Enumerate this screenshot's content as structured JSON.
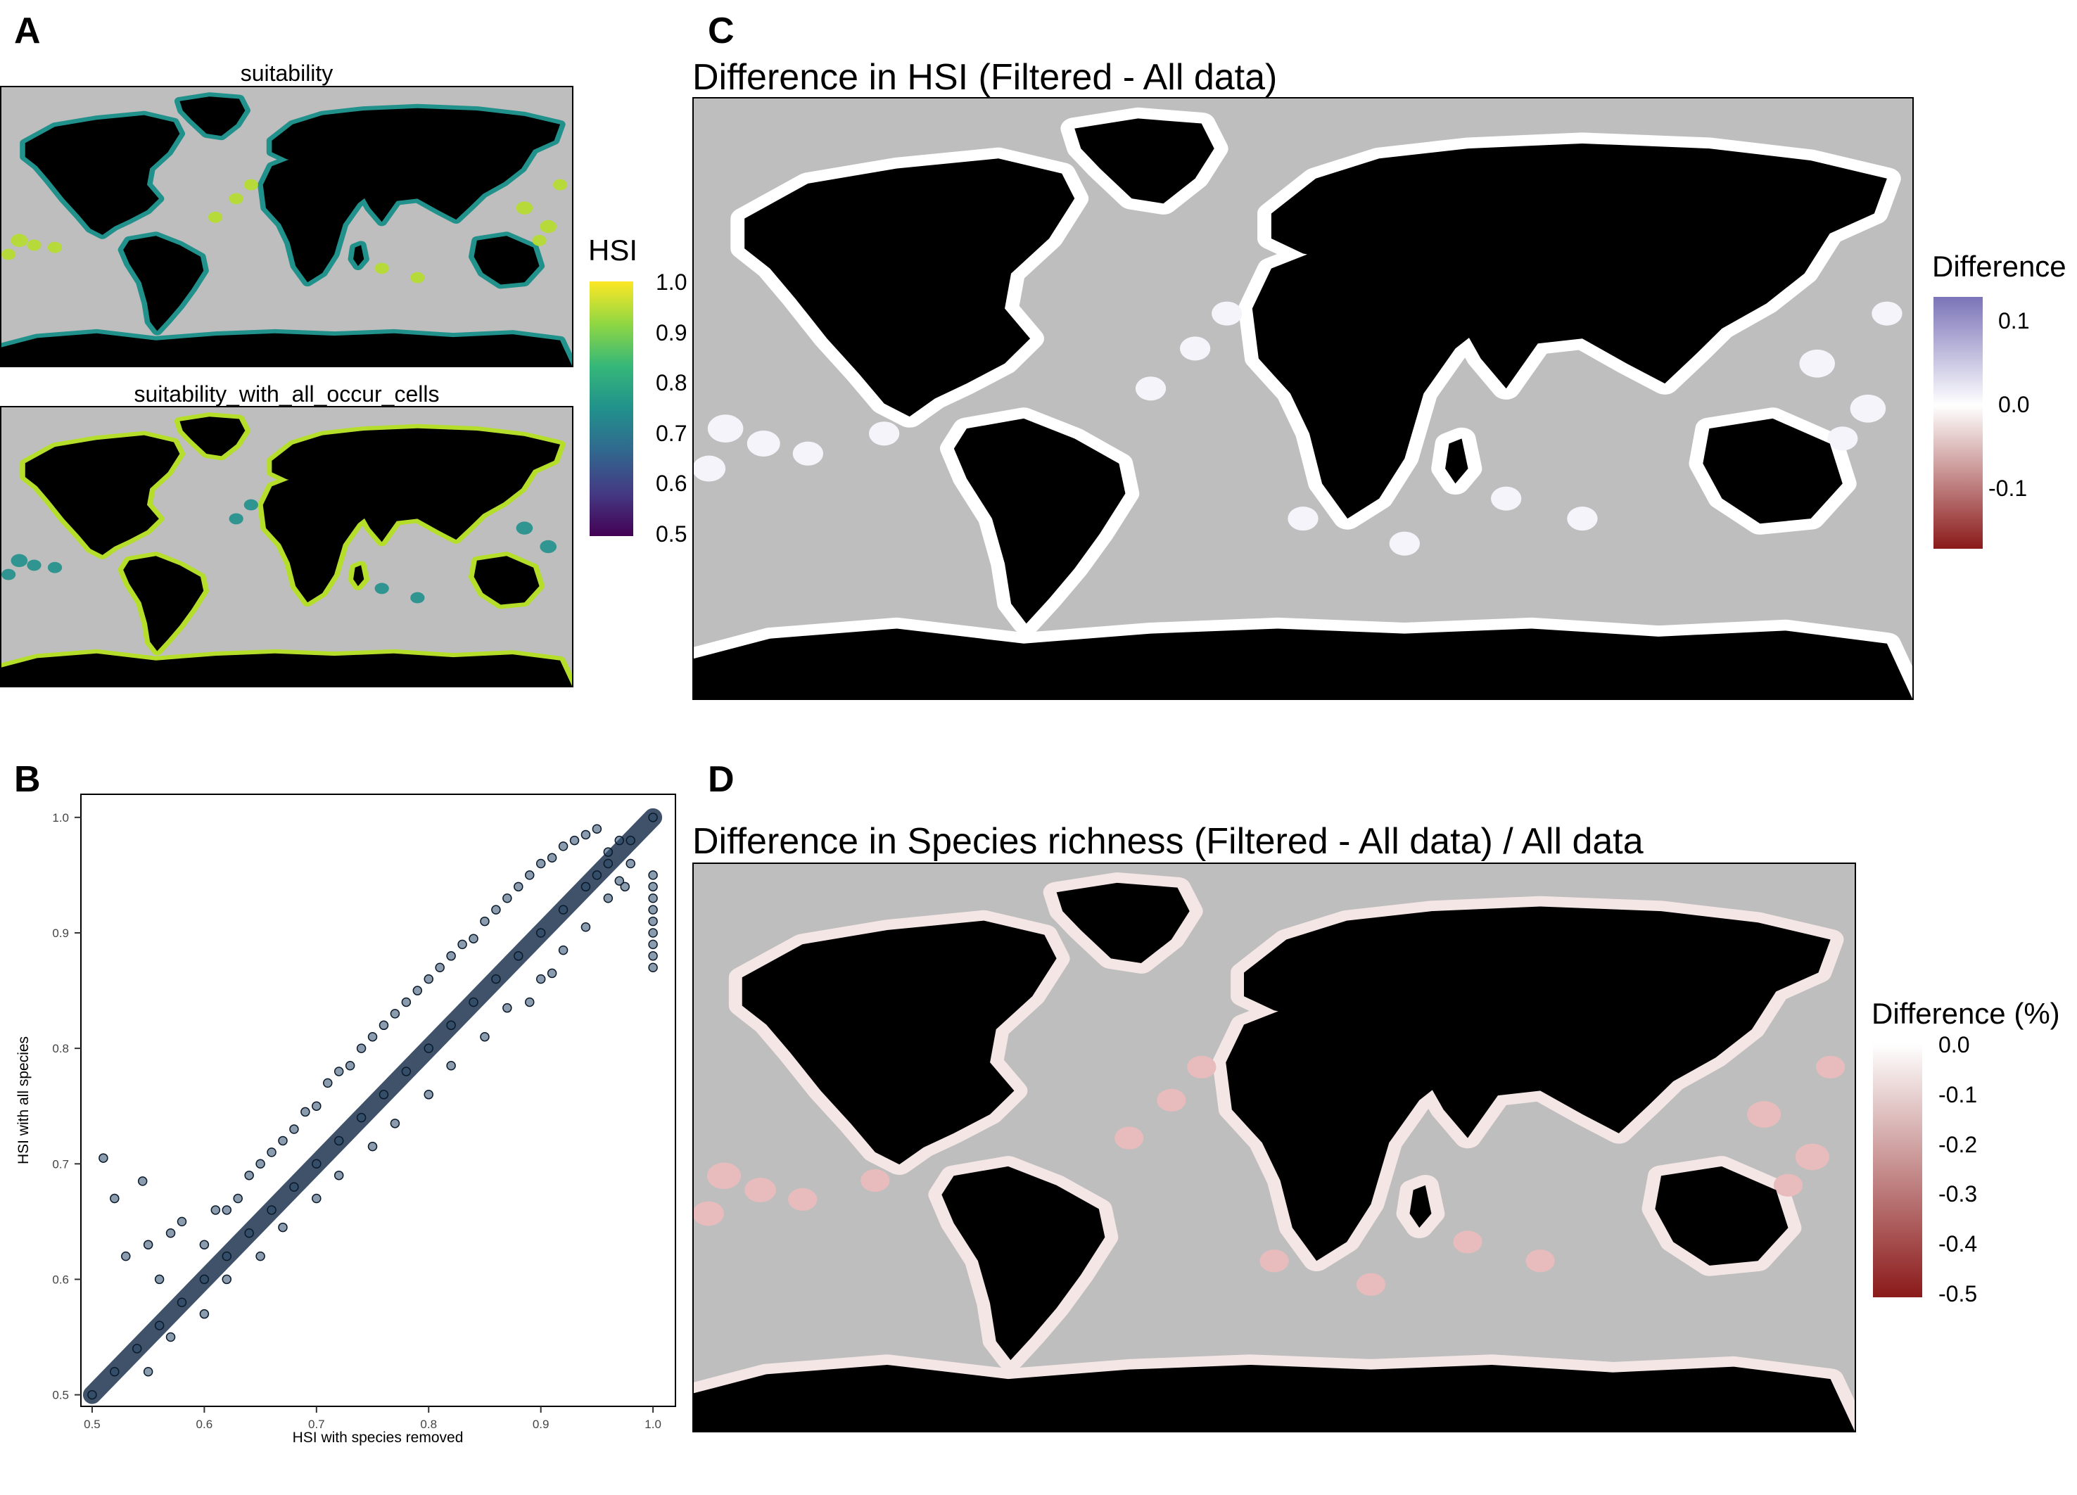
{
  "panels": {
    "a": {
      "label": "A",
      "top_subtitle": "suitability",
      "bottom_subtitle": "suitability_with_all_occur_cells"
    },
    "b": {
      "label": "B"
    },
    "c": {
      "label": "C",
      "title": "Difference in HSI (Filtered - All data)"
    },
    "d": {
      "label": "D",
      "title": "Difference in Species richness (Filtered - All data) / All data"
    }
  },
  "legends": {
    "hsi": {
      "title": "HSI",
      "ticks": [
        "1.0",
        "0.9",
        "0.8",
        "0.7",
        "0.6",
        "0.5"
      ],
      "colors": [
        "#fde725",
        "#90d743",
        "#35b779",
        "#21918c",
        "#31688e",
        "#443983",
        "#440154"
      ]
    },
    "diff": {
      "title": "Difference",
      "ticks": [
        "0.1",
        "0.0",
        "-0.1"
      ],
      "colors": [
        "#7b74b8",
        "#ffffff",
        "#8b1a1a"
      ]
    },
    "diffpct": {
      "title": "Difference (%)",
      "ticks": [
        "0.0",
        "-0.1",
        "-0.2",
        "-0.3",
        "-0.4",
        "-0.5"
      ],
      "colors": [
        "#ffffff",
        "#8b1a1a"
      ]
    }
  },
  "map_colors": {
    "ocean": "#bebebe",
    "land": "#000000"
  },
  "chart_data": [
    {
      "panel": "A",
      "type": "heatmap",
      "subplots": [
        "suitability",
        "suitability_with_all_occur_cells"
      ],
      "legend_title": "HSI",
      "value_range": [
        0.5,
        1.0
      ],
      "colormap": "viridis"
    },
    {
      "panel": "B",
      "type": "scatter",
      "xlabel": "HSI with species removed",
      "ylabel": "HSI with all species",
      "xlim": [
        0.49,
        1.02
      ],
      "ylim": [
        0.49,
        1.02
      ],
      "x_ticks": [
        "0.5",
        "0.6",
        "0.7",
        "0.8",
        "0.9",
        "1.0"
      ],
      "y_ticks": [
        "0.5",
        "0.6",
        "0.7",
        "0.8",
        "0.9",
        "1.0"
      ],
      "point_color": "#2c4a6b",
      "grid": false,
      "points": [
        [
          0.5,
          0.5
        ],
        [
          0.52,
          0.52
        ],
        [
          0.54,
          0.54
        ],
        [
          0.56,
          0.56
        ],
        [
          0.58,
          0.58
        ],
        [
          0.6,
          0.6
        ],
        [
          0.62,
          0.62
        ],
        [
          0.64,
          0.64
        ],
        [
          0.66,
          0.66
        ],
        [
          0.68,
          0.68
        ],
        [
          0.7,
          0.7
        ],
        [
          0.72,
          0.72
        ],
        [
          0.74,
          0.74
        ],
        [
          0.76,
          0.76
        ],
        [
          0.78,
          0.78
        ],
        [
          0.8,
          0.8
        ],
        [
          0.82,
          0.82
        ],
        [
          0.84,
          0.84
        ],
        [
          0.86,
          0.86
        ],
        [
          0.88,
          0.88
        ],
        [
          0.9,
          0.9
        ],
        [
          0.92,
          0.92
        ],
        [
          0.94,
          0.94
        ],
        [
          0.96,
          0.96
        ],
        [
          0.98,
          0.98
        ],
        [
          1.0,
          1.0
        ],
        [
          0.51,
          0.705
        ],
        [
          0.52,
          0.67
        ],
        [
          0.545,
          0.685
        ],
        [
          0.53,
          0.62
        ],
        [
          0.55,
          0.63
        ],
        [
          0.56,
          0.6
        ],
        [
          0.57,
          0.64
        ],
        [
          0.58,
          0.65
        ],
        [
          0.6,
          0.63
        ],
        [
          0.61,
          0.66
        ],
        [
          0.62,
          0.66
        ],
        [
          0.63,
          0.67
        ],
        [
          0.64,
          0.69
        ],
        [
          0.65,
          0.7
        ],
        [
          0.66,
          0.71
        ],
        [
          0.67,
          0.72
        ],
        [
          0.68,
          0.73
        ],
        [
          0.69,
          0.745
        ],
        [
          0.7,
          0.75
        ],
        [
          0.71,
          0.77
        ],
        [
          0.72,
          0.78
        ],
        [
          0.73,
          0.785
        ],
        [
          0.74,
          0.8
        ],
        [
          0.75,
          0.81
        ],
        [
          0.76,
          0.82
        ],
        [
          0.77,
          0.83
        ],
        [
          0.78,
          0.84
        ],
        [
          0.79,
          0.85
        ],
        [
          0.8,
          0.86
        ],
        [
          0.81,
          0.87
        ],
        [
          0.82,
          0.88
        ],
        [
          0.83,
          0.89
        ],
        [
          0.84,
          0.895
        ],
        [
          0.85,
          0.91
        ],
        [
          0.86,
          0.92
        ],
        [
          0.87,
          0.93
        ],
        [
          0.88,
          0.94
        ],
        [
          0.89,
          0.95
        ],
        [
          0.9,
          0.96
        ],
        [
          0.91,
          0.965
        ],
        [
          0.92,
          0.975
        ],
        [
          0.93,
          0.98
        ],
        [
          0.94,
          0.985
        ],
        [
          0.95,
          0.99
        ],
        [
          0.55,
          0.52
        ],
        [
          0.57,
          0.55
        ],
        [
          0.6,
          0.57
        ],
        [
          0.62,
          0.6
        ],
        [
          0.65,
          0.62
        ],
        [
          0.67,
          0.645
        ],
        [
          0.7,
          0.67
        ],
        [
          0.72,
          0.69
        ],
        [
          0.75,
          0.715
        ],
        [
          0.77,
          0.735
        ],
        [
          0.8,
          0.76
        ],
        [
          0.82,
          0.785
        ],
        [
          0.85,
          0.81
        ],
        [
          0.87,
          0.835
        ],
        [
          0.9,
          0.86
        ],
        [
          0.91,
          0.865
        ],
        [
          0.89,
          0.84
        ],
        [
          0.92,
          0.885
        ],
        [
          0.94,
          0.905
        ],
        [
          0.96,
          0.93
        ],
        [
          0.97,
          0.945
        ],
        [
          0.98,
          0.96
        ],
        [
          0.95,
          0.95
        ],
        [
          0.96,
          0.97
        ],
        [
          0.97,
          0.98
        ],
        [
          0.975,
          0.94
        ],
        [
          1.0,
          0.87
        ],
        [
          1.0,
          0.88
        ],
        [
          1.0,
          0.89
        ],
        [
          1.0,
          0.9
        ],
        [
          1.0,
          0.91
        ],
        [
          1.0,
          0.92
        ],
        [
          1.0,
          0.93
        ],
        [
          1.0,
          0.94
        ],
        [
          1.0,
          0.95
        ]
      ]
    },
    {
      "panel": "C",
      "type": "heatmap",
      "title": "Difference in HSI (Filtered - All data)",
      "legend_title": "Difference",
      "value_range": [
        -0.17,
        0.13
      ],
      "legend_ticks": [
        "0.1",
        "0.0",
        "-0.1"
      ]
    },
    {
      "panel": "D",
      "type": "heatmap",
      "title": "Difference in Species richness (Filtered - All data) / All data",
      "legend_title": "Difference (%)",
      "value_range": [
        -0.5,
        0.0
      ],
      "legend_ticks": [
        "0.0",
        "-0.1",
        "-0.2",
        "-0.3",
        "-0.4",
        "-0.5"
      ]
    }
  ]
}
